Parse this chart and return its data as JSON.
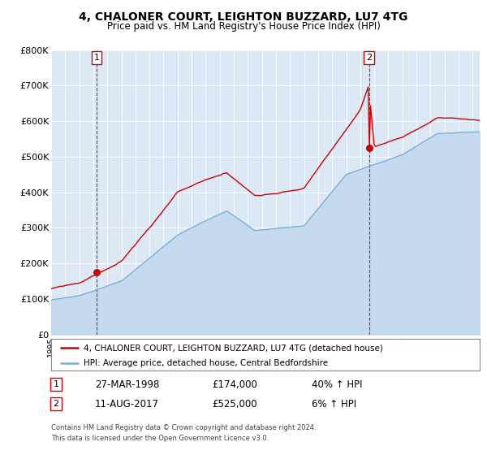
{
  "title": "4, CHALONER COURT, LEIGHTON BUZZARD, LU7 4TG",
  "subtitle": "Price paid vs. HM Land Registry's House Price Index (HPI)",
  "bg_color": "#dce9f5",
  "red_color": "#cc0000",
  "blue_color": "#7aafd4",
  "blue_fill_color": "#c5d9ef",
  "ylim": [
    0,
    800000
  ],
  "yticks": [
    0,
    100000,
    200000,
    300000,
    400000,
    500000,
    600000,
    700000,
    800000
  ],
  "ytick_labels": [
    "£0",
    "£100K",
    "£200K",
    "£300K",
    "£400K",
    "£500K",
    "£600K",
    "£700K",
    "£800K"
  ],
  "sale1_date": 1998.23,
  "sale1_price": 174000,
  "sale2_date": 2017.62,
  "sale2_price": 525000,
  "legend_property": "4, CHALONER COURT, LEIGHTON BUZZARD, LU7 4TG (detached house)",
  "legend_hpi": "HPI: Average price, detached house, Central Bedfordshire",
  "annotation1_label": "1",
  "annotation2_label": "2",
  "row1_num": "1",
  "row1_date": "27-MAR-1998",
  "row1_price": "£174,000",
  "row1_hpi": "40% ↑ HPI",
  "row2_num": "2",
  "row2_date": "11-AUG-2017",
  "row2_price": "£525,000",
  "row2_hpi": "6% ↑ HPI",
  "footnote1": "Contains HM Land Registry data © Crown copyright and database right 2024.",
  "footnote2": "This data is licensed under the Open Government Licence v3.0.",
  "xlim_start": 1995.0,
  "xlim_end": 2025.5
}
